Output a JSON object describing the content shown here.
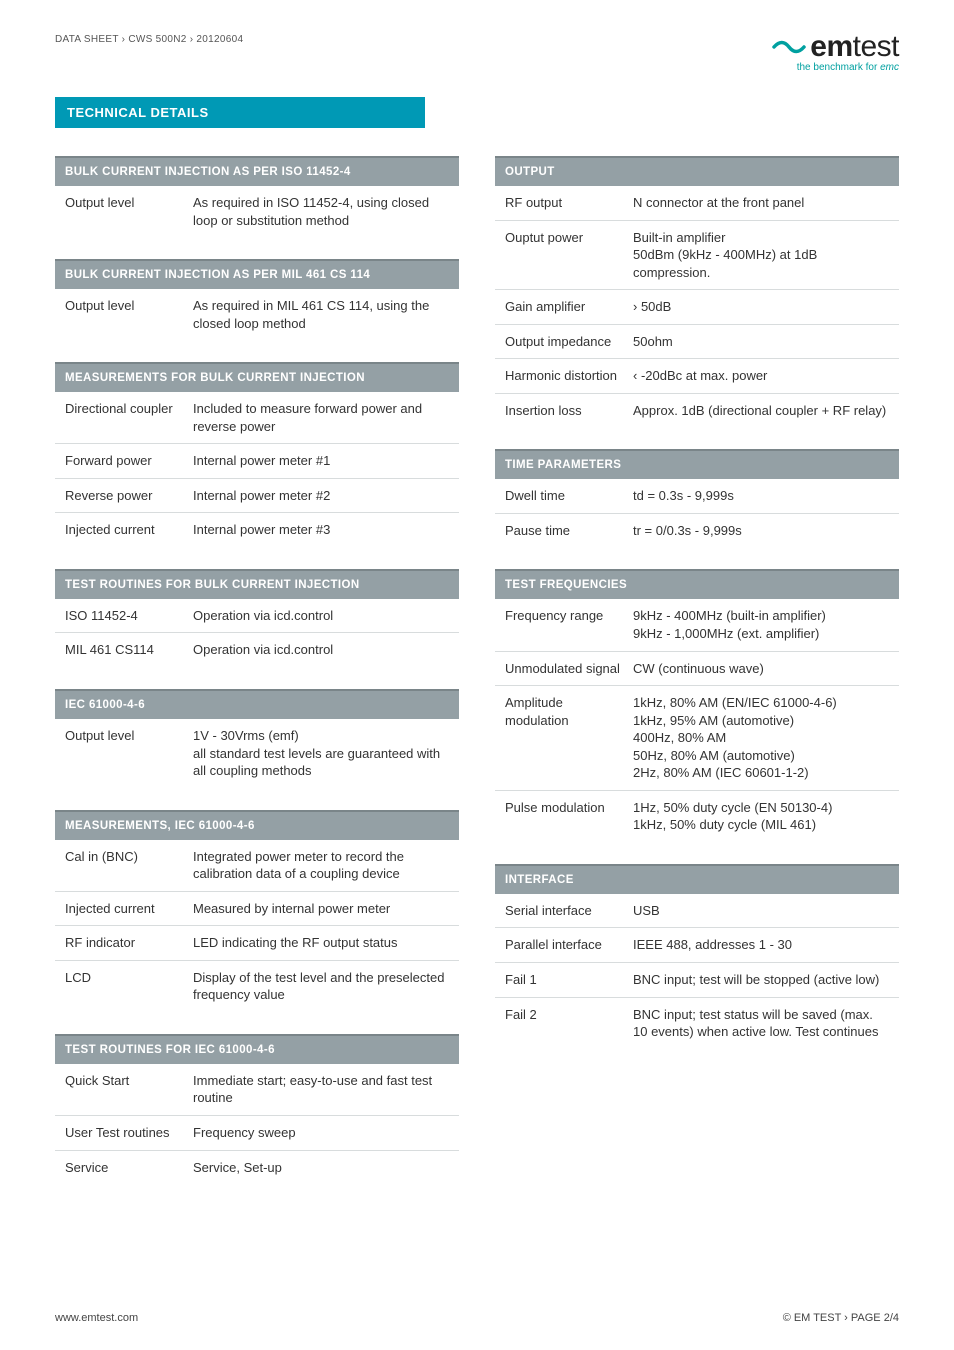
{
  "page": {
    "breadcrumb": "DATA SHEET › CWS 500N2 › 20120604",
    "tech_details": "TECHNICAL DETAILS",
    "footer_left": "www.emtest.com",
    "footer_right": "© EM TEST › PAGE 2/4"
  },
  "logo": {
    "brand1": "em",
    "brand2": "test",
    "tagline_pre": "the benchmark for ",
    "tagline_em": "emc"
  },
  "colors": {
    "header_bar": "#0099b5",
    "section_header_bg": "#94a0a5",
    "section_header_border": "#7a8589",
    "row_border": "#d8dcdd",
    "teal": "#00a0a0",
    "text": "#333333"
  },
  "left_blocks": [
    {
      "title": "BULK CURRENT INJECTION AS PER ISO 11452-4",
      "rows": [
        {
          "k": "Output level",
          "v": "As required in ISO 11452-4, using closed loop or substitution method"
        }
      ]
    },
    {
      "title": "BULK CURRENT INJECTION AS PER MIL 461 CS 114",
      "rows": [
        {
          "k": "Output level",
          "v": "As required in MIL 461 CS 114, using the closed loop method"
        }
      ]
    },
    {
      "title": "MEASUREMENTS FOR BULK CURRENT INJECTION",
      "rows": [
        {
          "k": "Directional coupler",
          "v": "Included to measure forward power and reverse power"
        },
        {
          "k": "Forward power",
          "v": "Internal power meter #1"
        },
        {
          "k": "Reverse power",
          "v": "Internal power meter #2"
        },
        {
          "k": "Injected current",
          "v": "Internal power meter #3"
        }
      ]
    },
    {
      "title": "TEST ROUTINES FOR BULK CURRENT INJECTION",
      "rows": [
        {
          "k": "ISO 11452-4",
          "v": "Operation via icd.control"
        },
        {
          "k": "MIL 461 CS114",
          "v": "Operation via icd.control"
        }
      ]
    },
    {
      "title": "IEC 61000-4-6",
      "rows": [
        {
          "k": "Output level",
          "v": "1V - 30Vrms (emf)\nall standard test levels are guaranteed with all coupling methods"
        }
      ]
    },
    {
      "title": "MEASUREMENTS, IEC 61000-4-6",
      "rows": [
        {
          "k": "Cal in (BNC)",
          "v": "Integrated power meter to record the calibration data of a coupling device"
        },
        {
          "k": "Injected current",
          "v": "Measured by internal power meter"
        },
        {
          "k": "RF indicator",
          "v": "LED indicating the RF output status"
        },
        {
          "k": "LCD",
          "v": "Display of the test level and the preselected frequency value"
        }
      ]
    },
    {
      "title": "TEST ROUTINES FOR IEC 61000-4-6",
      "rows": [
        {
          "k": "Quick Start",
          "v": "Immediate start; easy-to-use and fast test routine"
        },
        {
          "k": "User Test routines",
          "v": "Frequency sweep"
        },
        {
          "k": "Service",
          "v": "Service, Set-up"
        }
      ]
    }
  ],
  "right_blocks": [
    {
      "title": "OUTPUT",
      "rows": [
        {
          "k": "RF output",
          "v": "N connector at the front panel"
        },
        {
          "k": "Ouptut power",
          "v": "Built-in amplifier\n50dBm (9kHz - 400MHz) at 1dB compression."
        },
        {
          "k": "Gain amplifier",
          "v": "› 50dB"
        },
        {
          "k": "Output impedance",
          "v": "50ohm"
        },
        {
          "k": "Harmonic distortion",
          "v": "‹ -20dBc at max. power"
        },
        {
          "k": "Insertion loss",
          "v": "Approx. 1dB (directional coupler + RF relay)"
        }
      ]
    },
    {
      "title": "TIME PARAMETERS",
      "rows": [
        {
          "k": "Dwell time",
          "v": "td = 0.3s - 9,999s"
        },
        {
          "k": "Pause time",
          "v": "tr = 0/0.3s - 9,999s"
        }
      ]
    },
    {
      "title": "TEST FREQUENCIES",
      "rows": [
        {
          "k": "Frequency range",
          "v": "9kHz - 400MHz (built-in amplifier)\n9kHz - 1,000MHz (ext. amplifier)"
        },
        {
          "k": "Unmodulated signal",
          "v": "CW (continuous wave)"
        },
        {
          "k": "Amplitude modulation",
          "v": "1kHz, 80% AM (EN/IEC 61000-4-6)\n1kHz, 95% AM (automotive)\n400Hz, 80% AM\n50Hz, 80% AM (automotive)\n2Hz, 80% AM (IEC 60601-1-2)"
        },
        {
          "k": "Pulse modulation",
          "v": "1Hz, 50% duty cycle (EN 50130-4)\n1kHz, 50% duty cycle (MIL 461)"
        }
      ]
    },
    {
      "title": "INTERFACE",
      "rows": [
        {
          "k": "Serial interface",
          "v": "USB"
        },
        {
          "k": "Parallel interface",
          "v": "IEEE 488, addresses 1 - 30"
        },
        {
          "k": "Fail 1",
          "v": "BNC input; test will be stopped (active low)"
        },
        {
          "k": "Fail 2",
          "v": "BNC input; test status will be saved (max. 10 events) when active low. Test continues"
        }
      ]
    }
  ]
}
